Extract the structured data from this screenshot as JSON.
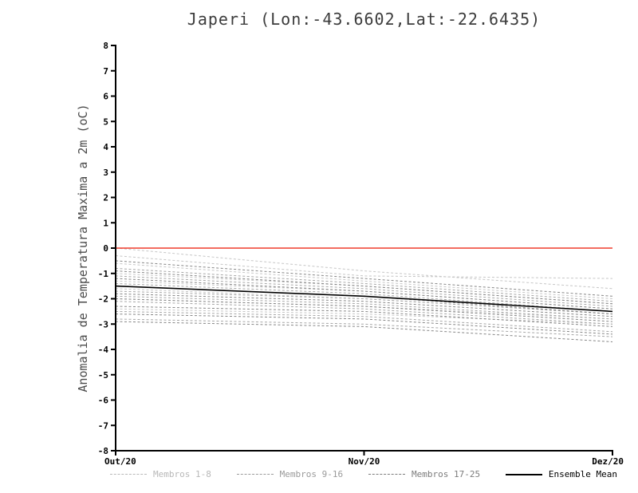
{
  "chart_data": {
    "type": "line",
    "title": "Japeri (Lon:-43.6602,Lat:-22.6435)",
    "ylabel": "Anomalia de Temperatura Maxima a 2m (oC)",
    "xlabel": "",
    "x_tick_labels": [
      "Out/20",
      "Nov/20",
      "Dez/20"
    ],
    "ylim": [
      -8,
      8
    ],
    "ytick_step": 1,
    "grid": false,
    "zero_line": {
      "value": 0,
      "color": "#ef3b2c"
    },
    "groups": [
      {
        "name": "Membros 1-8",
        "color": "#c6c6c6",
        "style": "dashed",
        "width": 1,
        "members": [
          [
            0.0,
            -0.9,
            -1.6
          ],
          [
            -0.3,
            -1.1,
            -1.2
          ],
          [
            -0.6,
            -1.3,
            -2.0
          ],
          [
            -1.0,
            -1.5,
            -2.2
          ],
          [
            -1.3,
            -1.7,
            -2.4
          ],
          [
            -1.6,
            -2.0,
            -2.6
          ],
          [
            -2.0,
            -2.3,
            -2.8
          ],
          [
            -2.4,
            -2.6,
            -3.0
          ]
        ]
      },
      {
        "name": "Membros 9-16",
        "color": "#a6a6a6",
        "style": "dashed",
        "width": 1,
        "members": [
          [
            -0.8,
            -1.4,
            -2.1
          ],
          [
            -1.1,
            -1.6,
            -2.3
          ],
          [
            -1.4,
            -1.8,
            -2.5
          ],
          [
            -1.7,
            -2.0,
            -2.6
          ],
          [
            -1.9,
            -2.2,
            -2.8
          ],
          [
            -2.1,
            -2.4,
            -3.0
          ],
          [
            -2.5,
            -2.7,
            -3.3
          ],
          [
            -2.8,
            -3.0,
            -3.5
          ]
        ]
      },
      {
        "name": "Membros 17-25",
        "color": "#868686",
        "style": "dashed",
        "width": 1,
        "members": [
          [
            -0.5,
            -1.2,
            -1.9
          ],
          [
            -0.9,
            -1.5,
            -2.2
          ],
          [
            -1.2,
            -1.7,
            -2.4
          ],
          [
            -1.5,
            -1.9,
            -2.6
          ],
          [
            -1.8,
            -2.1,
            -2.7
          ],
          [
            -2.0,
            -2.3,
            -2.9
          ],
          [
            -2.3,
            -2.5,
            -3.1
          ],
          [
            -2.6,
            -2.8,
            -3.4
          ],
          [
            -2.9,
            -3.1,
            -3.7
          ]
        ]
      },
      {
        "name": "Ensemble Mean",
        "color": "#000000",
        "style": "solid",
        "width": 1.6,
        "members": [
          [
            -1.5,
            -1.9,
            -2.5
          ]
        ]
      }
    ],
    "legend": [
      {
        "label": "Membros 1-8",
        "color": "#b8b8b8",
        "style": "dashed"
      },
      {
        "label": "Membros 9-16",
        "color": "#9a9a9a",
        "style": "dashed"
      },
      {
        "label": "Membros 17-25",
        "color": "#7c7c7c",
        "style": "dashed"
      },
      {
        "label": "Ensemble Mean",
        "color": "#000000",
        "style": "solid"
      }
    ]
  }
}
